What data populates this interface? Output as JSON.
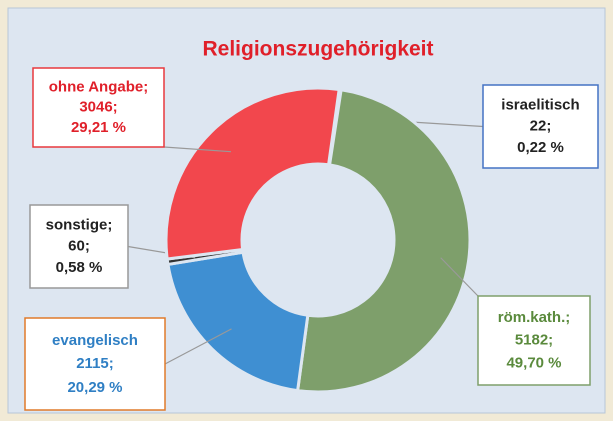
{
  "chart_data": {
    "type": "donut",
    "title": "Religionszugehörigkeit",
    "categories": [
      "israelitisch",
      "röm.kath.;",
      "evangelisch",
      "sonstige;",
      "ohne Angabe;"
    ],
    "values": [
      22,
      5182,
      2115,
      60,
      3046
    ],
    "value_labels": [
      "22;",
      "5182;",
      "2115;",
      "60;",
      "3046;"
    ],
    "percent_labels": [
      "0,22 %",
      "49,70 %",
      "20,29 %",
      "0,58 %",
      "29,21 %"
    ],
    "colors": [
      "#8ea9d6",
      "#7e9f6b",
      "#3f8fd2",
      "#333333",
      "#f2474d"
    ]
  }
}
